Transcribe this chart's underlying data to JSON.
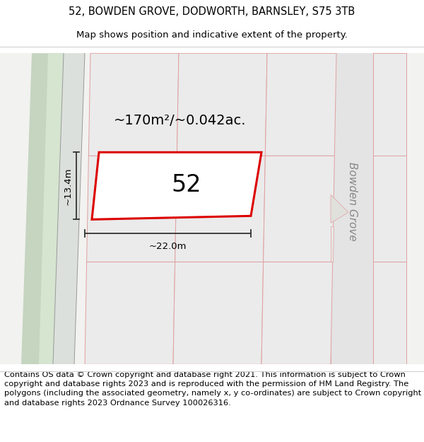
{
  "title_line1": "52, BOWDEN GROVE, DODWORTH, BARNSLEY, S75 3TB",
  "title_line2": "Map shows position and indicative extent of the property.",
  "footer_text": "Contains OS data © Crown copyright and database right 2021. This information is subject to Crown copyright and database rights 2023 and is reproduced with the permission of HM Land Registry. The polygons (including the associated geometry, namely x, y co-ordinates) are subject to Crown copyright and database rights 2023 Ordnance Survey 100026316.",
  "area_text": "~170m²/~0.042ac.",
  "number_text": "52",
  "width_label": "~22.0m",
  "height_label": "~13.4m",
  "street_label": "Bowden Grove",
  "map_bg": "#f2f2f0",
  "parcel_fill": "#ebebeb",
  "parcel_edge": "#e0a0a0",
  "road_fill": "#e4e4e4",
  "green_outer": "#c5d5c0",
  "green_inner": "#d5e5d0",
  "bowden_road_fill": "#e4e4e4",
  "property_color": "#dd0000",
  "property_fill": "#ffffff",
  "dim_color": "#333333",
  "title_fontsize": 10.5,
  "subtitle_fontsize": 9.5,
  "footer_fontsize": 8.2,
  "area_fontsize": 14,
  "number_fontsize": 24,
  "dim_fontsize": 9.5,
  "street_fontsize": 11
}
